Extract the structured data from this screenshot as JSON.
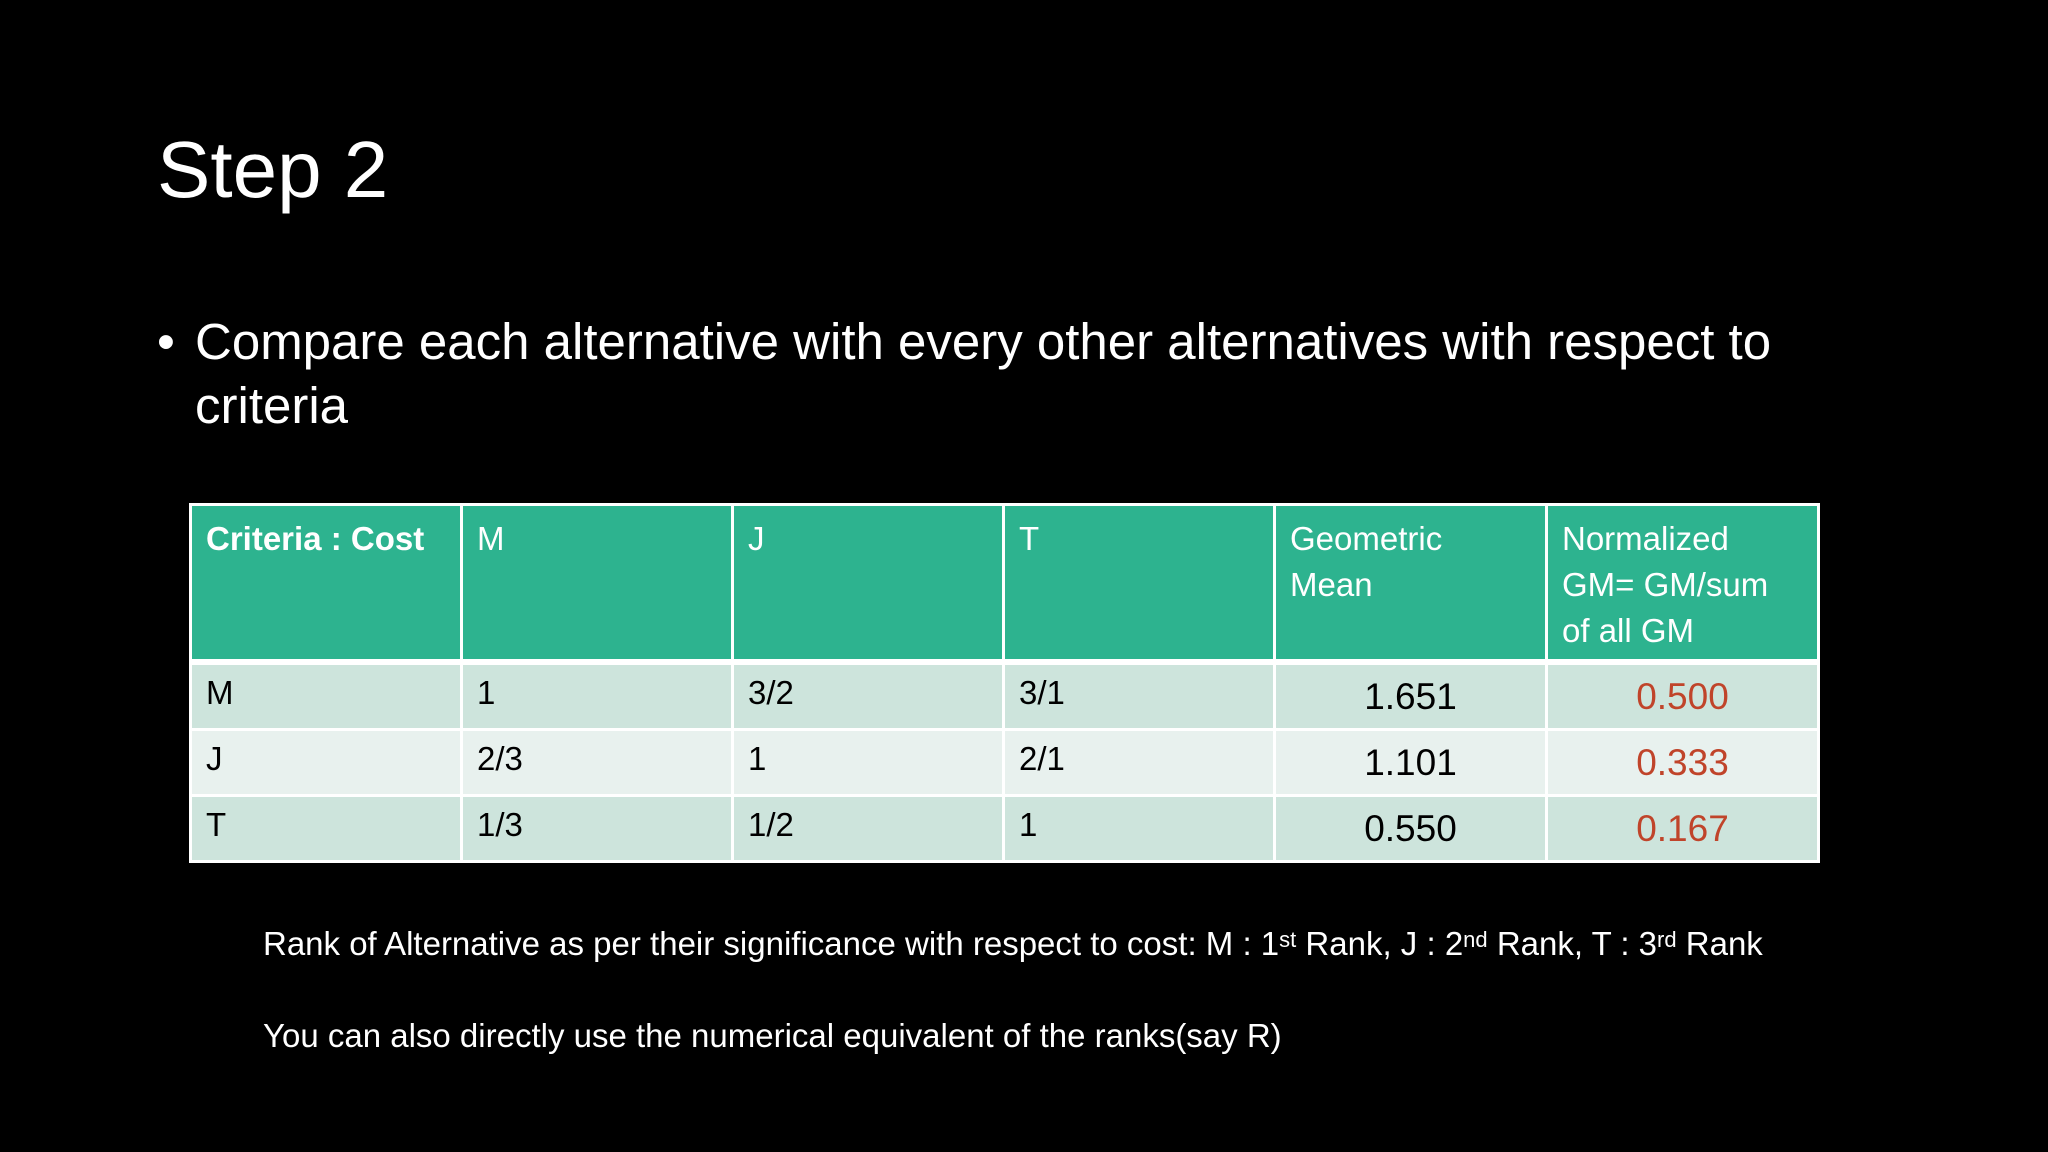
{
  "slide": {
    "title": "Step 2",
    "bullet": "Compare each alternative with every other alternatives with respect to criteria"
  },
  "table": {
    "headers": [
      "Criteria : Cost",
      "M",
      "J",
      "T",
      "Geometric Mean",
      "Normalized GM= GM/sum of all GM"
    ],
    "rows": [
      {
        "label": "M",
        "m": "1",
        "j": "3/2",
        "t": "3/1",
        "gm": "1.651",
        "ngm": "0.500"
      },
      {
        "label": "J",
        "m": "2/3",
        "j": "1",
        "t": "2/1",
        "gm": "1.101",
        "ngm": "0.333"
      },
      {
        "label": "T",
        "m": "1/3",
        "j": "1/2",
        "t": "1",
        "gm": "0.550",
        "ngm": "0.167"
      }
    ]
  },
  "rank_note": {
    "prefix": "Rank of Alternative as per their significance with respect to cost: M : 1",
    "sup1": "st",
    "mid1": " Rank, J : 2",
    "sup2": "nd",
    "mid2": " Rank, T : 3",
    "sup3": "rd",
    "suffix": " Rank"
  },
  "numeric_note": "You can also directly use the numerical equivalent of the ranks(say R)",
  "colors": {
    "background": "#000000",
    "header_fill": "#2db38f",
    "row_odd": "#cde4dc",
    "row_even": "#e8f1ee",
    "normalized_value": "#c0442a"
  }
}
